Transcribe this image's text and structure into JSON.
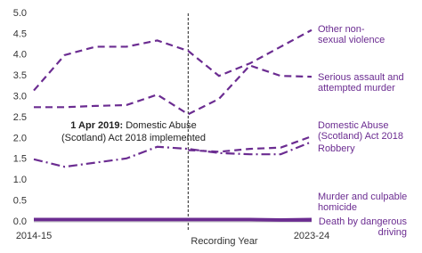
{
  "chart_data": {
    "type": "line",
    "x_label": "Recording Year",
    "categories": [
      "2014-15",
      null,
      null,
      null,
      null,
      null,
      null,
      null,
      null,
      "2023-24"
    ],
    "ylim": [
      0,
      5
    ],
    "yticks": [
      {
        "value": 0,
        "label": "0.0"
      },
      {
        "value": 0.5,
        "label": "0.5"
      },
      {
        "value": 1,
        "label": "1.0"
      },
      {
        "value": 1.5,
        "label": "1.5"
      },
      {
        "value": 2,
        "label": "2.0"
      },
      {
        "value": 2.5,
        "label": "2.5"
      },
      {
        "value": 3,
        "label": "3.0"
      },
      {
        "value": 3.5,
        "label": "3.5"
      },
      {
        "value": 4,
        "label": "4.0"
      },
      {
        "value": 4.5,
        "label": "4.5"
      },
      {
        "value": 5,
        "label": "5.0"
      }
    ],
    "annotation": {
      "bold": "1 Apr 2019:",
      "text": "Domestic Abuse\n(Scotland) Act 2018 implemented"
    },
    "series": [
      {
        "name": "Other non-\nsexual violence",
        "color": "#6b2c91",
        "style": "dashed",
        "values": [
          3.15,
          4.0,
          4.2,
          4.2,
          4.35,
          4.1,
          3.5,
          3.8,
          4.2,
          4.6
        ]
      },
      {
        "name": "Serious assault and\nattempted murder",
        "color": "#6b2c91",
        "style": "dashed",
        "values": [
          2.75,
          2.75,
          2.78,
          2.8,
          3.05,
          2.58,
          2.95,
          3.75,
          3.5,
          3.48
        ]
      },
      {
        "name": "Domestic Abuse\n(Scotland) Act 2018",
        "color": "#6b2c91",
        "style": "dashed",
        "values": [
          null,
          null,
          null,
          null,
          null,
          1.72,
          1.68,
          1.75,
          1.78,
          2.05
        ]
      },
      {
        "name": "Robbery",
        "color": "#6b2c91",
        "style": "dashdot",
        "values": [
          1.5,
          1.32,
          1.42,
          1.52,
          1.8,
          1.75,
          1.65,
          1.62,
          1.62,
          1.92
        ]
      },
      {
        "name": "Murder and culpable\nhomicide",
        "color": "#6b2c91",
        "style": "solid",
        "values": [
          0.07,
          0.07,
          0.07,
          0.07,
          0.07,
          0.07,
          0.07,
          0.07,
          0.06,
          0.07
        ]
      },
      {
        "name": "Death by dangerous\ndriving",
        "color": "#6b2c91",
        "style": "solid",
        "values": [
          0.04,
          0.04,
          0.04,
          0.04,
          0.04,
          0.04,
          0.04,
          0.04,
          0.03,
          0.03
        ]
      }
    ]
  }
}
